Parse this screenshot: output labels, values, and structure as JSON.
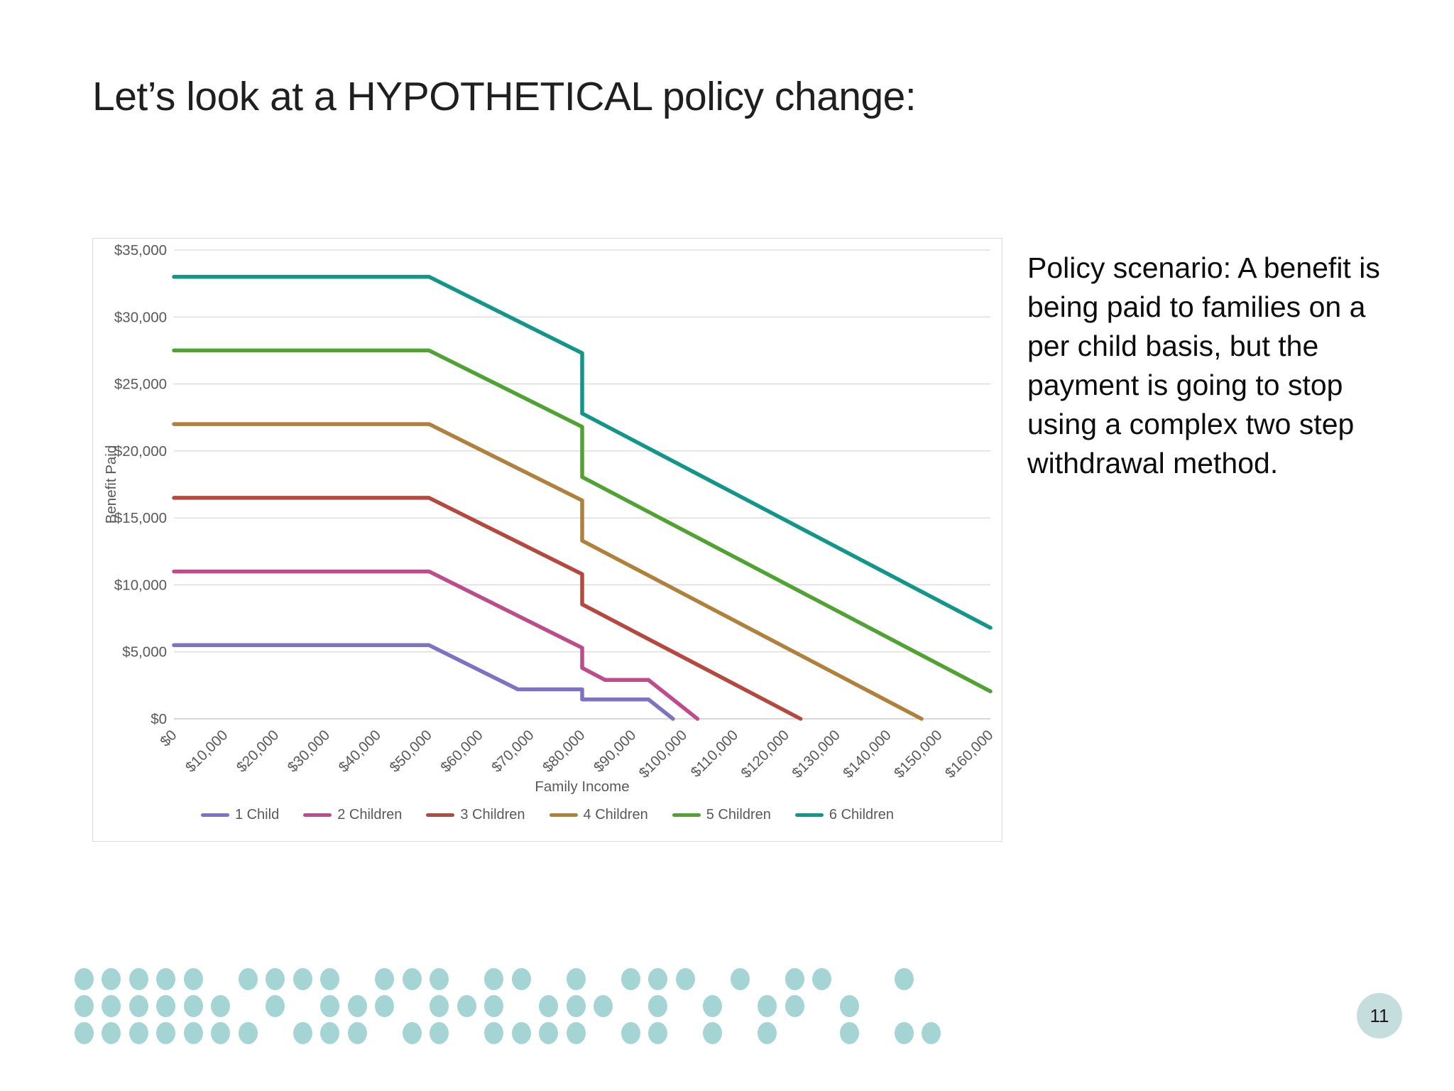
{
  "slide": {
    "title": "Let’s look at a HYPOTHETICAL policy change:",
    "body_text": "Policy scenario: A benefit is being paid to families on a per child basis, but the payment is going to stop using a complex two step withdrawal method.",
    "page_number": "11"
  },
  "chart_data": {
    "type": "line",
    "title": "",
    "xlabel": "Family Income",
    "ylabel": "Benefit Paid",
    "xlim": [
      0,
      160000
    ],
    "ylim": [
      0,
      35000
    ],
    "grid": "horizontal",
    "legend_position": "bottom",
    "x_tick_step": 10000,
    "x_ticks": [
      "$0",
      "$10,000",
      "$20,000",
      "$30,000",
      "$40,000",
      "$50,000",
      "$60,000",
      "$70,000",
      "$80,000",
      "$90,000",
      "$100,000",
      "$110,000",
      "$120,000",
      "$130,000",
      "$140,000",
      "$150,000",
      "$160,000"
    ],
    "y_tick_step": 5000,
    "y_ticks": [
      "$0",
      "$5,000",
      "$10,000",
      "$15,000",
      "$20,000",
      "$25,000",
      "$30,000",
      "$35,000"
    ],
    "series": [
      {
        "name": "1 Child",
        "color": "#7F72C5",
        "points": [
          [
            0,
            5500
          ],
          [
            50000,
            5500
          ],
          [
            67400,
            2200
          ],
          [
            80000,
            2200
          ],
          [
            80000,
            1450
          ],
          [
            93000,
            1450
          ],
          [
            97800,
            0
          ]
        ]
      },
      {
        "name": "2 Children",
        "color": "#BE4B8B",
        "points": [
          [
            0,
            11000
          ],
          [
            50000,
            11000
          ],
          [
            80000,
            5300
          ],
          [
            80000,
            3800
          ],
          [
            84500,
            2900
          ],
          [
            93000,
            2900
          ],
          [
            102600,
            0
          ]
        ]
      },
      {
        "name": "3 Children",
        "color": "#B5483F",
        "points": [
          [
            0,
            16500
          ],
          [
            50000,
            16500
          ],
          [
            80000,
            10800
          ],
          [
            80000,
            8550
          ],
          [
            122800,
            0
          ]
        ]
      },
      {
        "name": "4 Children",
        "color": "#B0813C",
        "points": [
          [
            0,
            22000
          ],
          [
            50000,
            22000
          ],
          [
            80000,
            16300
          ],
          [
            80000,
            13300
          ],
          [
            146500,
            0
          ]
        ]
      },
      {
        "name": "5 Children",
        "color": "#50A333",
        "points": [
          [
            0,
            27500
          ],
          [
            50000,
            27500
          ],
          [
            80000,
            21800
          ],
          [
            80000,
            18050
          ],
          [
            160000,
            2050
          ]
        ]
      },
      {
        "name": "6 Children",
        "color": "#12968A",
        "points": [
          [
            0,
            33000
          ],
          [
            50000,
            33000
          ],
          [
            80000,
            27300
          ],
          [
            80000,
            22800
          ],
          [
            160000,
            6800
          ]
        ]
      }
    ],
    "style": {
      "gridline_color": "#d9d9d9",
      "axis_line_color": "#bfbfbf",
      "tick_label_color": "#595959",
      "axis_title_color": "#595959",
      "line_width": 5.5
    }
  },
  "decoration": {
    "dot_color": "#A5D4D5",
    "dot_width": 27,
    "dot_height": 31,
    "origin_x": 118,
    "pitch_x": 38.5,
    "rows": [
      {
        "y": 1378,
        "cols": [
          0,
          1,
          2,
          3,
          4,
          6,
          7,
          8,
          9,
          11,
          12,
          13,
          15,
          16,
          18,
          20,
          21,
          22,
          24,
          26,
          27,
          30
        ]
      },
      {
        "y": 1416,
        "cols": [
          0,
          1,
          2,
          3,
          4,
          5,
          7,
          9,
          10,
          11,
          13,
          14,
          15,
          17,
          18,
          19,
          21,
          23,
          25,
          26,
          28
        ]
      },
      {
        "y": 1454,
        "cols": [
          0,
          1,
          2,
          3,
          4,
          5,
          6,
          8,
          9,
          10,
          12,
          13,
          15,
          16,
          17,
          18,
          20,
          21,
          23,
          25,
          28,
          30,
          31
        ]
      }
    ]
  },
  "page_badge": {
    "color": "#C6DDDD"
  }
}
